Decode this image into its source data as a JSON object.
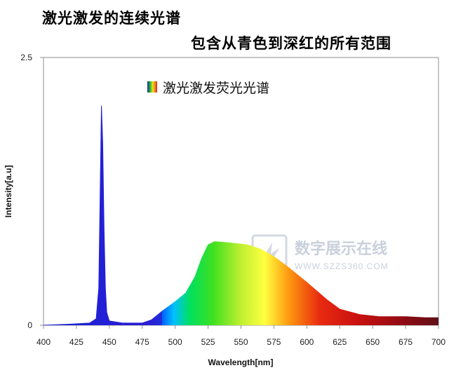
{
  "headline": {
    "line1": "激光激发的连续光谱",
    "line2": "包含从青色到深红的所有范围"
  },
  "watermark": {
    "text": "数字展示在线",
    "url": "WWW.SZZS360.COM"
  },
  "chart_data": {
    "type": "area",
    "title": "激光激发荧光光谱",
    "xlabel": "Wavelength[nm]",
    "ylabel": "Intensity[a.u]",
    "xlim": [
      400,
      700
    ],
    "ylim": [
      0,
      2.5
    ],
    "x_ticks": [
      "400",
      "425",
      "450",
      "475",
      "500",
      "525",
      "550",
      "575",
      "600",
      "625",
      "650",
      "675",
      "700"
    ],
    "y_ticks": [
      "0",
      "2.5"
    ],
    "grid": false,
    "legend_position": "top-center",
    "series": [
      {
        "name": "激光激发荧光光谱",
        "fill": "spectral",
        "points": [
          [
            400,
            0.0
          ],
          [
            420,
            0.01
          ],
          [
            435,
            0.02
          ],
          [
            440,
            0.06
          ],
          [
            442,
            0.35
          ],
          [
            443,
            1.2
          ],
          [
            444,
            2.05
          ],
          [
            445,
            1.7
          ],
          [
            446,
            0.9
          ],
          [
            447,
            0.35
          ],
          [
            448,
            0.12
          ],
          [
            450,
            0.04
          ],
          [
            460,
            0.02
          ],
          [
            475,
            0.02
          ],
          [
            482,
            0.05
          ],
          [
            490,
            0.13
          ],
          [
            500,
            0.22
          ],
          [
            508,
            0.3
          ],
          [
            515,
            0.45
          ],
          [
            520,
            0.62
          ],
          [
            525,
            0.75
          ],
          [
            530,
            0.78
          ],
          [
            540,
            0.77
          ],
          [
            555,
            0.75
          ],
          [
            565,
            0.71
          ],
          [
            575,
            0.64
          ],
          [
            585,
            0.55
          ],
          [
            600,
            0.4
          ],
          [
            615,
            0.24
          ],
          [
            625,
            0.15
          ],
          [
            640,
            0.1
          ],
          [
            655,
            0.08
          ],
          [
            675,
            0.08
          ],
          [
            690,
            0.07
          ],
          [
            700,
            0.07
          ]
        ]
      }
    ]
  }
}
